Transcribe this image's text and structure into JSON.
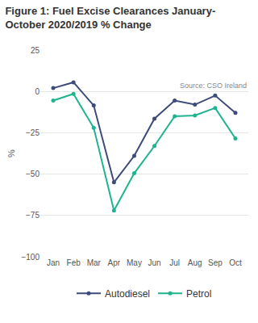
{
  "chart_data": {
    "type": "line",
    "title": "Figure 1: Fuel Excise Clearances January-October 2020/2019 % Change",
    "y_label": "%",
    "source": "Source: CSO Ireland",
    "categories": [
      "Jan",
      "Feb",
      "Mar",
      "Apr",
      "May",
      "Jun",
      "Jul",
      "Aug",
      "Sep",
      "Oct"
    ],
    "series": [
      {
        "name": "Autodiesel",
        "color": "#3d4b7a",
        "marker": "circle",
        "line_style": "solid",
        "values": [
          2,
          5.5,
          -8.5,
          -55,
          -39,
          -16.5,
          -5.5,
          -8,
          -2.5,
          -13
        ]
      },
      {
        "name": "Petrol",
        "color": "#1fb38e",
        "marker": "circle",
        "line_style": "solid",
        "values": [
          -5.5,
          -1.5,
          -22,
          -72,
          -49.5,
          -33,
          -15,
          -14.5,
          -10,
          -28.5
        ]
      }
    ],
    "ylim": [
      -100,
      25
    ],
    "yticks": [
      -100,
      -75,
      -50,
      -25,
      0,
      25
    ],
    "grid": true,
    "legend": "bottom"
  }
}
